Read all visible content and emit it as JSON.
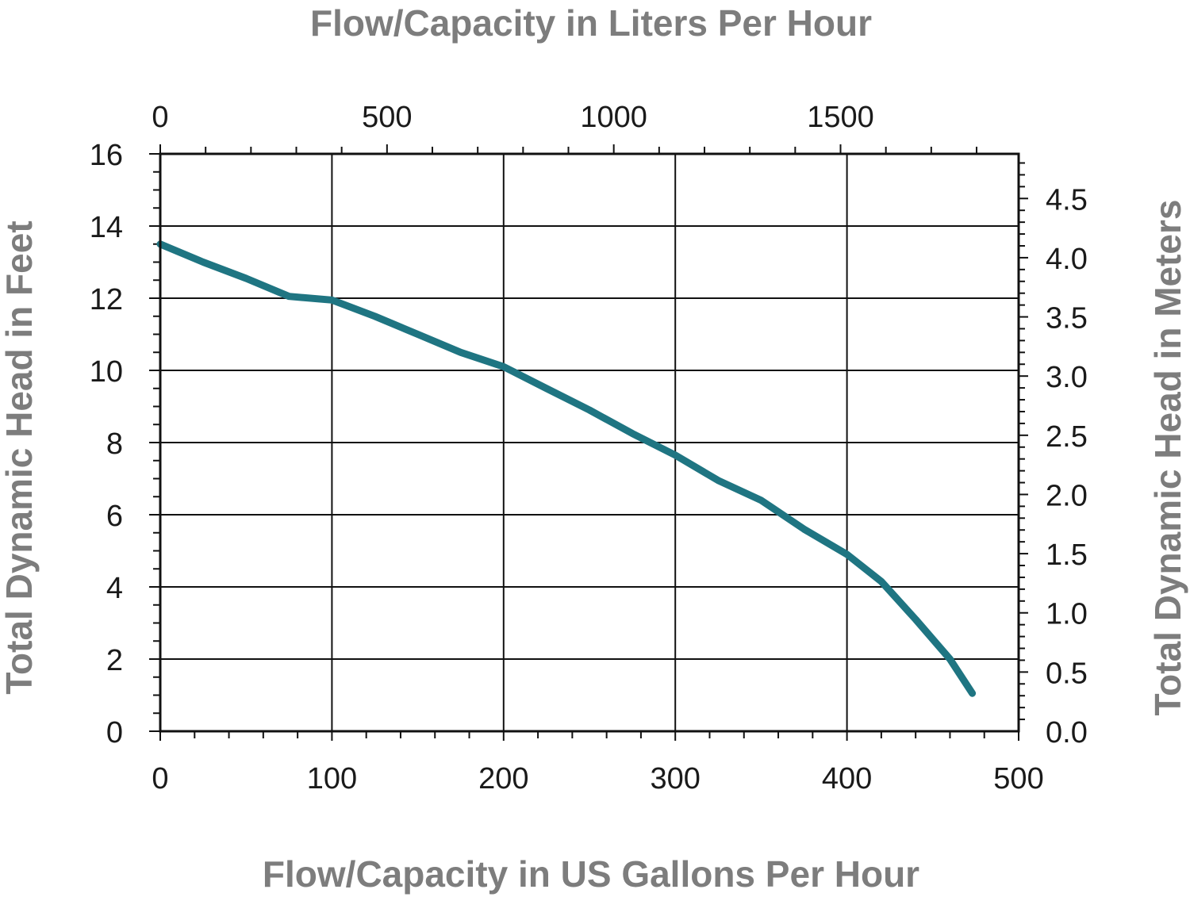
{
  "chart_data": {
    "type": "line",
    "title": "",
    "xlabel": "Flow/Capacity in US Gallons Per Hour",
    "ylabel": "Total Dynamic Head in Feet",
    "x2label": "Flow/Capacity in Liters Per Hour",
    "y2label": "Total Dynamic Head in Meters",
    "xlim": [
      0,
      500
    ],
    "ylim": [
      0,
      16
    ],
    "x2lim": [
      0,
      1892.7
    ],
    "y2lim": [
      0,
      4.877
    ],
    "x_ticks": [
      "0",
      "100",
      "200",
      "300",
      "400",
      "500"
    ],
    "y_ticks": [
      "0",
      "2",
      "4",
      "6",
      "8",
      "10",
      "12",
      "14",
      "16"
    ],
    "x2_ticks": [
      "0",
      "500",
      "1000",
      "1500"
    ],
    "y2_ticks": [
      "0.0",
      "0.5",
      "1.0",
      "1.5",
      "2.0",
      "2.5",
      "3.0",
      "3.5",
      "4.0",
      "4.5"
    ],
    "grid": true,
    "line_color": "#1f7582",
    "series": [
      {
        "name": "",
        "x": [
          0,
          25,
          50,
          75,
          100,
          125,
          150,
          175,
          200,
          225,
          250,
          275,
          300,
          325,
          350,
          375,
          400,
          420,
          440,
          460,
          473
        ],
        "y": [
          13.5,
          13.0,
          12.55,
          12.05,
          11.95,
          11.5,
          11.0,
          10.5,
          10.1,
          9.5,
          8.9,
          8.25,
          7.65,
          6.95,
          6.4,
          5.6,
          4.9,
          4.15,
          3.1,
          2.0,
          1.05
        ]
      }
    ]
  }
}
